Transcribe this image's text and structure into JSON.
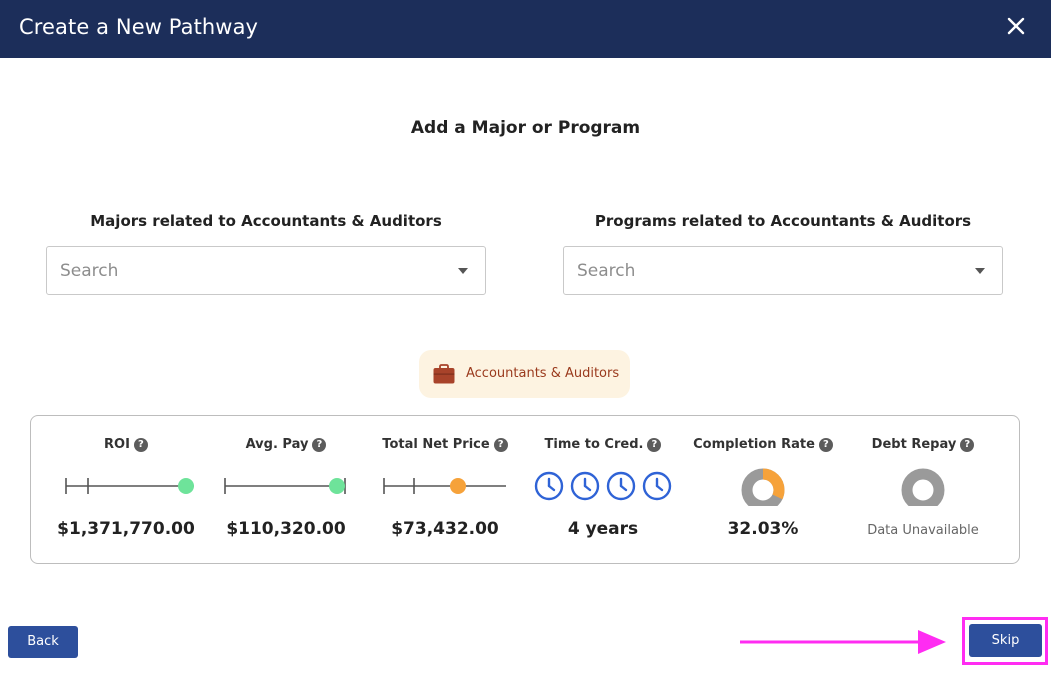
{
  "window": {
    "title": "Create a New Pathway",
    "close_icon": "close-icon"
  },
  "main": {
    "heading": "Add a Major or Program",
    "majors": {
      "label": "Majors related to Accountants & Auditors",
      "placeholder": "Search"
    },
    "programs": {
      "label": "Programs related to Accountants & Auditors",
      "placeholder": "Search"
    },
    "career_chip": {
      "label": "Accountants & Auditors",
      "icon": "briefcase-icon",
      "icon_color": "#a8432a"
    }
  },
  "stats": {
    "roi": {
      "label": "ROI",
      "value": "$1,371,770.00",
      "level": 0.95,
      "dot_color": "#6ee39a"
    },
    "avg_pay": {
      "label": "Avg. Pay",
      "value": "$110,320.00",
      "level": 0.95,
      "dot_color": "#6ee39a"
    },
    "net_price": {
      "label": "Total Net Price",
      "value": "$73,432.00",
      "level": 0.6,
      "dot_color": "#f6a23a"
    },
    "time_to_cred": {
      "label": "Time to Cred.",
      "value": "4 years",
      "clock_count": 4,
      "clock_color": "#2f63d6"
    },
    "completion": {
      "label": "Completion Rate",
      "value": "32.03%",
      "fraction": 0.3203,
      "fill_color": "#f6a23a",
      "track_color": "#9a9a9a"
    },
    "debt_repay": {
      "label": "Debt Repay",
      "value": "Data Unavailable",
      "track_color": "#9a9a9a"
    },
    "help_glyph": "?"
  },
  "footer": {
    "back_label": "Back",
    "skip_label": "Skip",
    "highlight_color": "#ff2cf2"
  }
}
